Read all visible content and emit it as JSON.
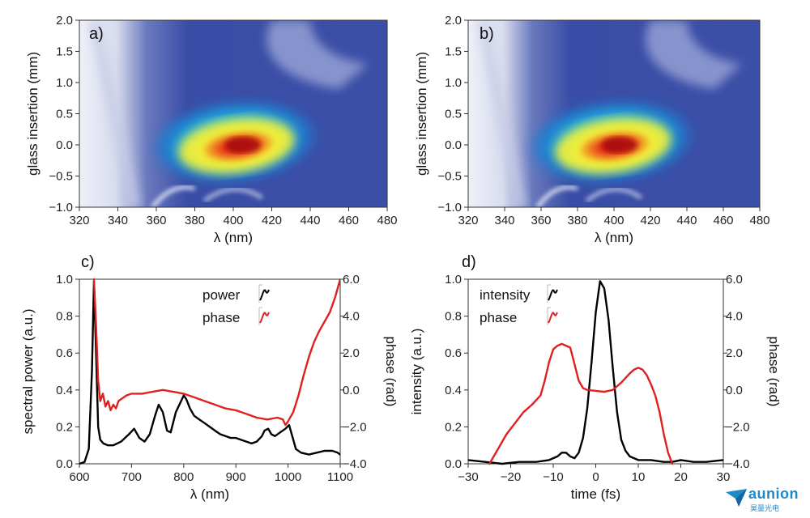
{
  "brand": {
    "name": "aunion",
    "subtitle": "昊量光电",
    "color": "#1e88c8"
  },
  "chart_data": [
    {
      "id": "a",
      "panel_label": "a)",
      "type": "heatmap",
      "xlabel": "λ (nm)",
      "ylabel": "glass insertion (mm)",
      "xlim": [
        320,
        480
      ],
      "ylim": [
        -1.0,
        2.0
      ],
      "xticks": [
        "320",
        "340",
        "360",
        "380",
        "400",
        "420",
        "440",
        "460",
        "480"
      ],
      "yticks": [
        "-1.0",
        "-0.5",
        "0.0",
        "0.5",
        "1.0",
        "1.5",
        "2.0"
      ],
      "colormap": [
        "#ecedf6",
        "#3c4fa6",
        "#1d7ed0",
        "#2ec0d8",
        "#5fd08a",
        "#f0ee3a",
        "#f08a22",
        "#e22a1c",
        "#a80e0e"
      ],
      "peak": {
        "x": 405,
        "y": 0.0
      }
    },
    {
      "id": "b",
      "panel_label": "b)",
      "type": "heatmap",
      "xlabel": "λ (nm)",
      "ylabel": "glass insertion (mm)",
      "xlim": [
        320,
        480
      ],
      "ylim": [
        -1.0,
        2.0
      ],
      "xticks": [
        "320",
        "340",
        "360",
        "380",
        "400",
        "420",
        "440",
        "460",
        "480"
      ],
      "yticks": [
        "-1.0",
        "-0.5",
        "0.0",
        "0.5",
        "1.0",
        "1.5",
        "2.0"
      ],
      "colormap": [
        "#ecedf6",
        "#3c4fa6",
        "#1d7ed0",
        "#2ec0d8",
        "#5fd08a",
        "#f0ee3a",
        "#f08a22",
        "#e22a1c",
        "#a80e0e"
      ],
      "peak": {
        "x": 403,
        "y": 0.0
      }
    },
    {
      "id": "c",
      "panel_label": "c)",
      "type": "line",
      "xlabel": "λ (nm)",
      "ylabel": "spectral power (a.u.)",
      "y2label": "phase (rad)",
      "xlim": [
        600,
        1100
      ],
      "ylim": [
        0,
        1.0
      ],
      "y2lim": [
        -4.0,
        6.0
      ],
      "xticks": [
        "600",
        "700",
        "800",
        "900",
        "1000",
        "1100"
      ],
      "yticks": [
        "0.0",
        "0.2",
        "0.4",
        "0.6",
        "0.8",
        "1.0"
      ],
      "y2ticks": [
        "-4.0",
        "-2.0",
        "0.0",
        "2.0",
        "4.0",
        "6.0"
      ],
      "series": [
        {
          "name": "power",
          "axis": "left",
          "color": "#000000",
          "x": [
            600,
            610,
            618,
            624,
            628,
            632,
            636,
            640,
            646,
            655,
            665,
            680,
            695,
            705,
            715,
            725,
            735,
            745,
            752,
            760,
            768,
            775,
            785,
            795,
            800,
            805,
            812,
            820,
            830,
            840,
            850,
            860,
            870,
            880,
            890,
            900,
            910,
            920,
            930,
            940,
            950,
            955,
            962,
            968,
            975,
            985,
            995,
            1002,
            1008,
            1015,
            1025,
            1040,
            1055,
            1070,
            1085,
            1095,
            1100
          ],
          "y": [
            0.0,
            0.01,
            0.08,
            0.5,
            0.99,
            0.6,
            0.2,
            0.13,
            0.11,
            0.1,
            0.1,
            0.12,
            0.16,
            0.19,
            0.14,
            0.12,
            0.16,
            0.26,
            0.32,
            0.28,
            0.18,
            0.17,
            0.28,
            0.34,
            0.37,
            0.35,
            0.3,
            0.26,
            0.24,
            0.22,
            0.2,
            0.18,
            0.16,
            0.15,
            0.14,
            0.14,
            0.13,
            0.12,
            0.11,
            0.12,
            0.15,
            0.18,
            0.19,
            0.16,
            0.15,
            0.17,
            0.19,
            0.21,
            0.15,
            0.08,
            0.06,
            0.05,
            0.06,
            0.07,
            0.07,
            0.06,
            0.05
          ]
        },
        {
          "name": "phase",
          "axis": "right",
          "color": "#e02020",
          "x": [
            628,
            632,
            636,
            640,
            645,
            650,
            655,
            660,
            665,
            670,
            675,
            680,
            690,
            700,
            720,
            740,
            760,
            780,
            800,
            820,
            840,
            860,
            880,
            900,
            920,
            940,
            960,
            980,
            990,
            995,
            1000,
            1010,
            1020,
            1030,
            1040,
            1050,
            1060,
            1070,
            1080,
            1090,
            1100
          ],
          "y": [
            6.0,
            3.5,
            0.5,
            -0.6,
            -0.2,
            -0.9,
            -0.6,
            -1.1,
            -0.8,
            -1.0,
            -0.6,
            -0.5,
            -0.3,
            -0.2,
            -0.2,
            -0.1,
            0.0,
            -0.1,
            -0.2,
            -0.4,
            -0.6,
            -0.8,
            -1.0,
            -1.1,
            -1.3,
            -1.5,
            -1.6,
            -1.5,
            -1.6,
            -1.9,
            -1.7,
            -1.2,
            -0.3,
            0.8,
            1.8,
            2.6,
            3.2,
            3.7,
            4.2,
            5.0,
            6.0
          ]
        }
      ],
      "legend": [
        "power",
        "phase"
      ],
      "legend_position": "top-right"
    },
    {
      "id": "d",
      "panel_label": "d)",
      "type": "line",
      "xlabel": "time (fs)",
      "ylabel": "intensity (a.u.)",
      "y2label": "phase (rad)",
      "xlim": [
        -30,
        30
      ],
      "ylim": [
        0,
        1.0
      ],
      "y2lim": [
        -4.0,
        6.0
      ],
      "xticks": [
        "-30",
        "-20",
        "-10",
        "0",
        "10",
        "20",
        "30"
      ],
      "yticks": [
        "0.0",
        "0.2",
        "0.4",
        "0.6",
        "0.8",
        "1.0"
      ],
      "y2ticks": [
        "-4.0",
        "-2.0",
        "0.0",
        "2.0",
        "4.0",
        "6.0"
      ],
      "series": [
        {
          "name": "intensity",
          "axis": "left",
          "color": "#000000",
          "x": [
            -30,
            -26,
            -22,
            -18,
            -14,
            -11,
            -9,
            -8,
            -7,
            -6,
            -5,
            -4,
            -3,
            -2,
            -1,
            0,
            1,
            2,
            3,
            4,
            5,
            6,
            7,
            8,
            10,
            13,
            16,
            18,
            20,
            23,
            26,
            30
          ],
          "y": [
            0.02,
            0.01,
            0.0,
            0.01,
            0.01,
            0.02,
            0.04,
            0.06,
            0.06,
            0.04,
            0.03,
            0.06,
            0.14,
            0.3,
            0.55,
            0.82,
            0.99,
            0.95,
            0.78,
            0.52,
            0.28,
            0.13,
            0.07,
            0.04,
            0.02,
            0.02,
            0.01,
            0.01,
            0.02,
            0.01,
            0.01,
            0.02
          ]
        },
        {
          "name": "phase",
          "axis": "right",
          "color": "#e02020",
          "x": [
            -25,
            -23,
            -21,
            -19,
            -17,
            -15,
            -13,
            -12,
            -11,
            -10,
            -9,
            -8,
            -7,
            -6,
            -5,
            -4,
            -3,
            -2,
            0,
            2,
            4,
            6,
            8,
            9,
            10,
            11,
            12,
            13,
            14,
            15,
            16,
            17,
            18
          ],
          "y": [
            -4.0,
            -3.2,
            -2.4,
            -1.8,
            -1.2,
            -0.8,
            -0.3,
            0.5,
            1.5,
            2.2,
            2.4,
            2.5,
            2.4,
            2.3,
            1.4,
            0.5,
            0.1,
            0.0,
            -0.05,
            -0.1,
            0.0,
            0.4,
            0.9,
            1.1,
            1.2,
            1.1,
            0.8,
            0.3,
            -0.3,
            -1.2,
            -2.4,
            -3.4,
            -4.0
          ]
        }
      ],
      "legend": [
        "intensity",
        "phase"
      ],
      "legend_position": "top-left"
    }
  ]
}
